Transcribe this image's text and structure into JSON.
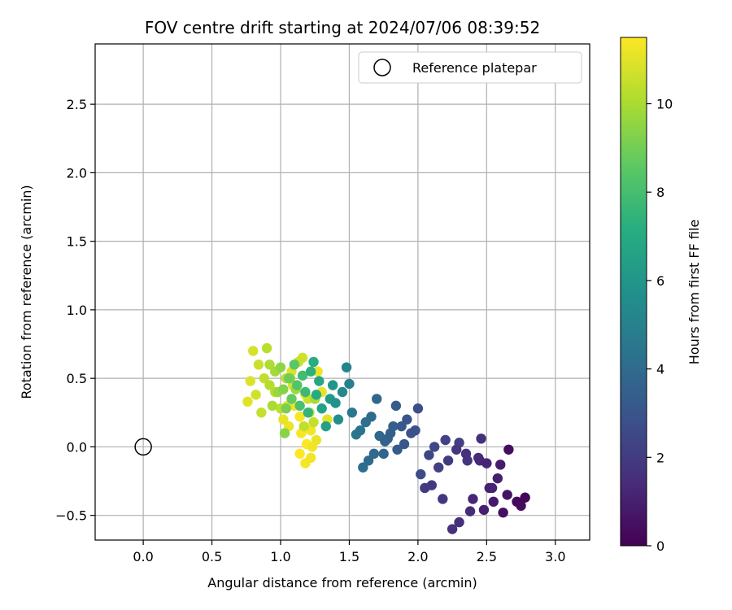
{
  "chart_data": {
    "type": "scatter",
    "title": "FOV centre drift starting at 2024/07/06 08:39:52",
    "xlabel": "Angular distance from reference (arcmin)",
    "ylabel": "Rotation from reference (arcmin)",
    "xlim": [
      -0.35,
      3.25
    ],
    "ylim": [
      -0.68,
      2.94
    ],
    "xticks": [
      0.0,
      0.5,
      1.0,
      1.5,
      2.0,
      2.5,
      3.0
    ],
    "xtick_labels": [
      "0.0",
      "0.5",
      "1.0",
      "1.5",
      "2.0",
      "2.5",
      "3.0"
    ],
    "yticks": [
      -0.5,
      0.0,
      0.5,
      1.0,
      1.5,
      2.0,
      2.5
    ],
    "ytick_labels": [
      "−0.5",
      "0.0",
      "0.5",
      "1.0",
      "1.5",
      "2.0",
      "2.5"
    ],
    "grid": true,
    "legend_position": "top-right",
    "reference": {
      "label": "Reference platepar",
      "x": 0.0,
      "y": 0.0
    },
    "colorbar": {
      "label": "Hours from first FF file",
      "colormap": "viridis",
      "range": [
        0,
        11.5
      ],
      "ticks": [
        0,
        2,
        4,
        6,
        8,
        10
      ],
      "tick_labels": [
        "0",
        "2",
        "4",
        "6",
        "8",
        "10"
      ]
    },
    "series": [
      {
        "name": "",
        "x": [
          2.78,
          2.72,
          2.75,
          2.62,
          2.65,
          2.55,
          2.6,
          2.48,
          2.52,
          2.4,
          2.45,
          2.38,
          2.3,
          2.25,
          2.18,
          2.1,
          2.05,
          2.58,
          2.5,
          2.44,
          2.35,
          2.28,
          2.22,
          2.15,
          2.08,
          2.02,
          2.66,
          2.54,
          2.46,
          2.36,
          2.3,
          2.2,
          2.12,
          1.98,
          1.92,
          1.88,
          1.84,
          1.8,
          1.76,
          1.72,
          1.68,
          1.64,
          1.6,
          2.0,
          1.95,
          1.9,
          1.85,
          1.82,
          1.78,
          1.75,
          1.7,
          1.66,
          1.62,
          1.58,
          1.55,
          1.52,
          1.5,
          1.48,
          1.45,
          1.42,
          1.4,
          1.38,
          1.36,
          1.33,
          1.3,
          1.28,
          1.26,
          1.24,
          1.22,
          1.2,
          1.18,
          1.16,
          1.14,
          1.12,
          1.1,
          1.08,
          1.06,
          1.04,
          1.02,
          1.0,
          0.98,
          0.96,
          0.94,
          0.92,
          0.9,
          0.88,
          0.86,
          0.84,
          0.82,
          0.8,
          0.78,
          0.76,
          1.02,
          1.06,
          1.1,
          1.14,
          1.18,
          1.22,
          1.26,
          1.3,
          1.34,
          1.08,
          1.12,
          1.16,
          1.2,
          1.24,
          1.04,
          1.0,
          0.96,
          0.92,
          1.15,
          1.19,
          1.23,
          1.27,
          1.05,
          1.09,
          1.13,
          1.17,
          1.21,
          1.25,
          1.11,
          1.07,
          1.03,
          1.14,
          1.18,
          1.22
        ],
        "y": [
          -0.37,
          -0.4,
          -0.43,
          -0.48,
          -0.35,
          -0.4,
          -0.13,
          -0.46,
          -0.3,
          -0.38,
          -0.1,
          -0.47,
          -0.55,
          -0.6,
          -0.38,
          -0.28,
          -0.3,
          -0.23,
          -0.12,
          -0.08,
          -0.05,
          -0.02,
          -0.1,
          -0.15,
          -0.06,
          -0.2,
          -0.02,
          -0.3,
          0.06,
          -0.1,
          0.03,
          0.05,
          0.0,
          0.12,
          0.2,
          0.15,
          0.3,
          0.1,
          0.04,
          0.08,
          -0.05,
          -0.1,
          -0.15,
          0.28,
          0.1,
          0.02,
          -0.02,
          0.15,
          0.06,
          -0.05,
          0.35,
          0.22,
          0.18,
          0.12,
          0.09,
          0.25,
          0.46,
          0.58,
          0.4,
          0.2,
          0.32,
          0.45,
          0.35,
          0.15,
          0.28,
          0.48,
          0.38,
          0.62,
          0.55,
          0.25,
          0.4,
          0.52,
          0.3,
          0.45,
          0.6,
          0.35,
          0.5,
          0.28,
          0.42,
          0.58,
          0.4,
          0.55,
          0.3,
          0.45,
          0.72,
          0.5,
          0.25,
          0.6,
          0.38,
          0.7,
          0.48,
          0.33,
          0.2,
          0.15,
          0.3,
          0.22,
          0.38,
          0.12,
          0.05,
          0.4,
          0.2,
          0.55,
          0.45,
          0.65,
          0.35,
          0.18,
          0.5,
          0.28,
          0.4,
          0.6,
          0.1,
          0.02,
          0.0,
          0.55,
          0.3,
          0.45,
          0.62,
          0.15,
          0.25,
          0.35,
          0.42,
          0.5,
          0.1,
          -0.05,
          -0.12,
          -0.08
        ],
        "hours": [
          0.2,
          0.3,
          0.4,
          0.5,
          0.6,
          0.8,
          0.9,
          1.0,
          1.1,
          1.2,
          1.3,
          1.4,
          1.5,
          1.6,
          1.8,
          1.9,
          2.0,
          1.0,
          1.2,
          1.4,
          1.6,
          1.8,
          2.0,
          2.2,
          2.4,
          2.6,
          0.4,
          1.1,
          1.5,
          1.7,
          2.1,
          2.3,
          2.5,
          2.8,
          3.0,
          3.2,
          3.3,
          3.4,
          3.6,
          3.8,
          3.9,
          4.0,
          4.1,
          2.7,
          2.9,
          3.1,
          3.3,
          3.5,
          3.6,
          3.7,
          3.8,
          4.0,
          4.2,
          4.4,
          4.5,
          4.6,
          5.0,
          5.2,
          5.4,
          5.6,
          5.8,
          6.0,
          6.2,
          6.4,
          6.6,
          6.8,
          7.0,
          7.1,
          7.3,
          7.5,
          7.7,
          7.9,
          8.1,
          8.3,
          8.5,
          8.7,
          8.9,
          9.1,
          9.3,
          9.5,
          9.7,
          9.9,
          10.0,
          10.2,
          10.3,
          10.4,
          10.5,
          10.6,
          10.7,
          10.8,
          10.9,
          11.0,
          11.1,
          11.2,
          11.3,
          11.4,
          11.5,
          11.3,
          11.2,
          11.1,
          11.0,
          10.9,
          10.8,
          10.7,
          10.6,
          10.5,
          10.4,
          10.3,
          10.2,
          10.1,
          11.4,
          11.5,
          11.3,
          11.2,
          11.0,
          10.8,
          10.6,
          10.4,
          10.2,
          10.0,
          9.8,
          9.6,
          9.4,
          11.5,
          11.4,
          11.3
        ]
      }
    ]
  }
}
